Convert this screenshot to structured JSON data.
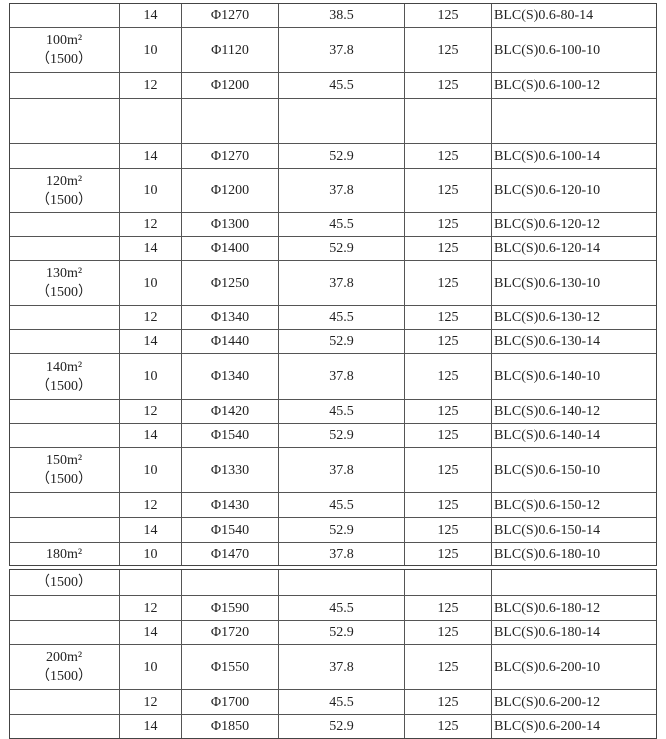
{
  "tables": [
    {
      "rows": [
        [
          "",
          "14",
          "Φ1270",
          "38.5",
          "125",
          "BLC(S)0.6-80-14"
        ],
        [
          "100m²\n（1500）",
          "10",
          "Φ1120",
          "37.8",
          "125",
          "BLC(S)0.6-100-10"
        ],
        [
          "",
          "12",
          "Φ1200",
          "45.5",
          "125",
          "BLC(S)0.6-100-12"
        ],
        [
          "",
          "",
          "",
          "",
          "",
          ""
        ],
        [
          "",
          "14",
          "Φ1270",
          "52.9",
          "125",
          "BLC(S)0.6-100-14"
        ],
        [
          "120m²\n（1500）",
          "10",
          "Φ1200",
          "37.8",
          "125",
          "BLC(S)0.6-120-10"
        ],
        [
          "",
          "12",
          "Φ1300",
          "45.5",
          "125",
          "BLC(S)0.6-120-12"
        ],
        [
          "",
          "14",
          "Φ1400",
          "52.9",
          "125",
          "BLC(S)0.6-120-14"
        ],
        [
          "130m²\n（1500）",
          "10",
          "Φ1250",
          "37.8",
          "125",
          "BLC(S)0.6-130-10"
        ],
        [
          "",
          "12",
          "Φ1340",
          "45.5",
          "125",
          "BLC(S)0.6-130-12"
        ],
        [
          "",
          "14",
          "Φ1440",
          "52.9",
          "125",
          "BLC(S)0.6-130-14"
        ],
        [
          "140m²\n（1500）",
          "10",
          "Φ1340",
          "37.8",
          "125",
          "BLC(S)0.6-140-10"
        ],
        [
          "",
          "12",
          "Φ1420",
          "45.5",
          "125",
          "BLC(S)0.6-140-12"
        ],
        [
          "",
          "14",
          "Φ1540",
          "52.9",
          "125",
          "BLC(S)0.6-140-14"
        ],
        [
          "150m²\n（1500）",
          "10",
          "Φ1330",
          "37.8",
          "125",
          "BLC(S)0.6-150-10"
        ],
        [
          "",
          "12",
          "Φ1430",
          "45.5",
          "125",
          "BLC(S)0.6-150-12"
        ],
        [
          "",
          "14",
          "Φ1540",
          "52.9",
          "125",
          "BLC(S)0.6-150-14"
        ],
        [
          "180m²",
          "10",
          "Φ1470",
          "37.8",
          "125",
          "BLC(S)0.6-180-10"
        ]
      ]
    },
    {
      "rows": [
        [
          "（1500）",
          "",
          "",
          "",
          "",
          ""
        ],
        [
          "",
          "12",
          "Φ1590",
          "45.5",
          "125",
          "BLC(S)0.6-180-12"
        ],
        [
          "",
          "14",
          "Φ1720",
          "52.9",
          "125",
          "BLC(S)0.6-180-14"
        ],
        [
          "200m²\n（1500）",
          "10",
          "Φ1550",
          "37.8",
          "125",
          "BLC(S)0.6-200-10"
        ],
        [
          "",
          "12",
          "Φ1700",
          "45.5",
          "125",
          "BLC(S)0.6-200-12"
        ],
        [
          "",
          "14",
          "Φ1850",
          "52.9",
          "125",
          "BLC(S)0.6-200-14"
        ]
      ]
    }
  ]
}
